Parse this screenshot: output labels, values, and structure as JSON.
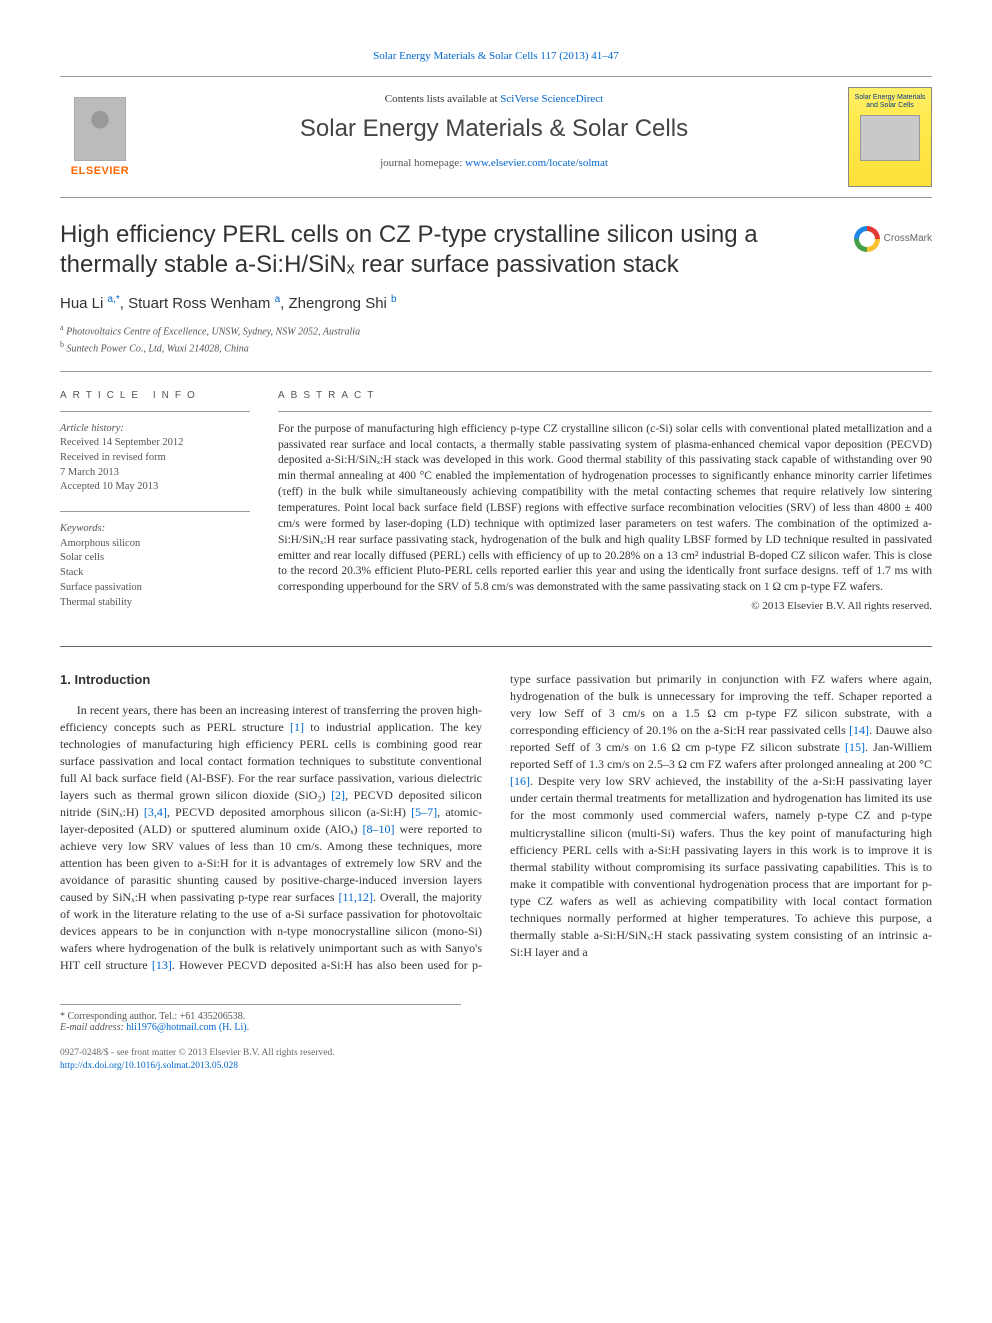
{
  "top_link": "Solar Energy Materials & Solar Cells 117 (2013) 41–47",
  "masthead": {
    "contents_prefix": "Contents lists available at ",
    "contents_link": "SciVerse ScienceDirect",
    "journal_name": "Solar Energy Materials & Solar Cells",
    "homepage_prefix": "journal homepage: ",
    "homepage_url": "www.elsevier.com/locate/solmat",
    "publisher_brand": "ELSEVIER",
    "cover_title": "Solar Energy Materials and Solar Cells"
  },
  "crossmark_label": "CrossMark",
  "article": {
    "title": "High efficiency PERL cells on CZ P-type crystalline silicon using a thermally stable a-Si:H/SiNₓ rear surface passivation stack",
    "authors_html": "Hua Li <span class='sup'>a,</span><span class='star sup'>*</span>, Stuart Ross Wenham <span class='sup'>a</span>, Zhengrong Shi <span class='sup'>b</span>",
    "affiliations": [
      {
        "sup": "a",
        "text": "Photovoltaics Centre of Excellence, UNSW, Sydney, NSW 2052, Australia"
      },
      {
        "sup": "b",
        "text": "Suntech Power Co., Ltd, Wuxi 214028, China"
      }
    ]
  },
  "info": {
    "label": "ARTICLE INFO",
    "history_label": "Article history:",
    "history": [
      "Received 14 September 2012",
      "Received in revised form",
      "7 March 2013",
      "Accepted 10 May 2013"
    ],
    "keywords_label": "Keywords:",
    "keywords": [
      "Amorphous silicon",
      "Solar cells",
      "Stack",
      "Surface passivation",
      "Thermal stability"
    ]
  },
  "abstract": {
    "label": "ABSTRACT",
    "text": "For the purpose of manufacturing high efficiency p-type CZ crystalline silicon (c-Si) solar cells with conventional plated metallization and a passivated rear surface and local contacts, a thermally stable passivating system of plasma-enhanced chemical vapor deposition (PECVD) deposited a-Si:H/SiNₓ:H stack was developed in this work. Good thermal stability of this passivating stack capable of withstanding over 90 min thermal annealing at 400 °C enabled the implementation of hydrogenation processes to significantly enhance minority carrier lifetimes (τeff) in the bulk while simultaneously achieving compatibility with the metal contacting schemes that require relatively low sintering temperatures. Point local back surface field (LBSF) regions with effective surface recombination velocities (SRV) of less than 4800 ± 400 cm/s were formed by laser-doping (LD) technique with optimized laser parameters on test wafers. The combination of the optimized a-Si:H/SiNₓ:H rear surface passivating stack, hydrogenation of the bulk and high quality LBSF formed by LD technique resulted in passivated emitter and rear locally diffused (PERL) cells with efficiency of up to 20.28% on a 13 cm² industrial B-doped CZ silicon wafer. This is close to the record 20.3% efficient Pluto-PERL cells reported earlier this year and using the identically front surface designs. τeff of 1.7 ms with corresponding upperbound for the SRV of 5.8 cm/s was demonstrated with the same passivating stack on 1 Ω cm p-type FZ wafers.",
    "copyright": "© 2013 Elsevier B.V. All rights reserved."
  },
  "section1": {
    "heading": "1.  Introduction",
    "para1_pre": "In recent years, there has been an increasing interest of transferring the proven high-efficiency concepts such as PERL structure ",
    "ref1": "[1]",
    "para1_mid1": " to industrial application. The key technologies of manufacturing high efficiency PERL cells is combining good rear surface passivation and local contact formation techniques to substitute conventional full Al back surface field (Al-BSF). For the rear surface passivation, various dielectric layers such as thermal grown silicon dioxide (SiO₂) ",
    "ref2": "[2]",
    "para1_mid2": ", PECVD deposited silicon nitride (SiNₓ:H) ",
    "ref34": "[3,4]",
    "para1_mid3": ", PECVD deposited amorphous silicon (a-Si:H) ",
    "ref57": "[5–7]",
    "para1_mid4": ", atomic-layer-deposited (ALD) or sputtered aluminum oxide (AlOₓ) ",
    "ref810": "[8–10]",
    "para1_mid5": " were reported to achieve very low SRV values of less than 10 cm/s. Among these techniques, more attention has been given to a-Si:H for it is advantages of extremely low SRV and the avoidance of parasitic shunting caused by positive-charge-induced inversion layers caused by SiNₓ:H when passivating p-type rear surfaces ",
    "ref1112": "[11,12]",
    "para1_mid6": ". Overall, the majority of work in the literature relating to the use of a-Si surface passivation for photovoltaic devices appears to be in conjunction with n-type monocrystalline silicon (mono-Si) wafers where hydrogenation of the bulk is relatively unimportant such as with Sanyo's HIT cell structure ",
    "ref13": "[13]",
    "para1_mid7": ". However PECVD deposited a-Si:H has also been used for p-type surface passivation but primarily in conjunction with FZ wafers where again, hydrogenation of the bulk is unnecessary for improving the τeff. Schaper reported a very low Seff of 3 cm/s on a 1.5 Ω cm p-type FZ silicon substrate, with a corresponding efficiency of 20.1% on the a-Si:H rear passivated cells ",
    "ref14": "[14]",
    "para1_mid8": ". Dauwe also reported Seff of 3 cm/s on 1.6 Ω cm p-type FZ silicon substrate ",
    "ref15": "[15]",
    "para1_mid9": ". Jan-Williem reported Seff of 1.3 cm/s on 2.5–3 Ω cm FZ wafers after prolonged annealing at 200 °C ",
    "ref16": "[16]",
    "para1_tail": ". Despite very low SRV achieved, the instability of the a-Si:H passivating layer under certain thermal treatments for metallization and hydrogenation has limited its use for the most commonly used commercial wafers, namely p-type CZ and p-type multicrystalline silicon (multi-Si) wafers. Thus the key point of manufacturing high efficiency PERL cells with a-Si:H passivating layers in this work is to improve it is thermal stability without compromising its surface passivating capabilities. This is to make it compatible with conventional hydrogenation process that are important for p-type CZ wafers as well as achieving compatibility with local contact formation techniques normally performed at higher temperatures. To achieve this purpose, a thermally stable a-Si:H/SiNₓ:H stack passivating system consisting of an intrinsic a-Si:H layer and a"
  },
  "footnote": {
    "corr": "* Corresponding author. Tel.: +61 435206538.",
    "email_label": "E-mail address: ",
    "email": "hli1976@hotmail.com (H. Li)."
  },
  "bottom": {
    "line1": "0927-0248/$ - see front matter © 2013 Elsevier B.V. All rights reserved.",
    "line2": "http://dx.doi.org/10.1016/j.solmat.2013.05.028"
  },
  "colors": {
    "link": "#0066cc",
    "text": "#333333",
    "rule": "#999999",
    "elsevier_orange": "#ff6600",
    "cover_yellow": "#ffe94a"
  }
}
